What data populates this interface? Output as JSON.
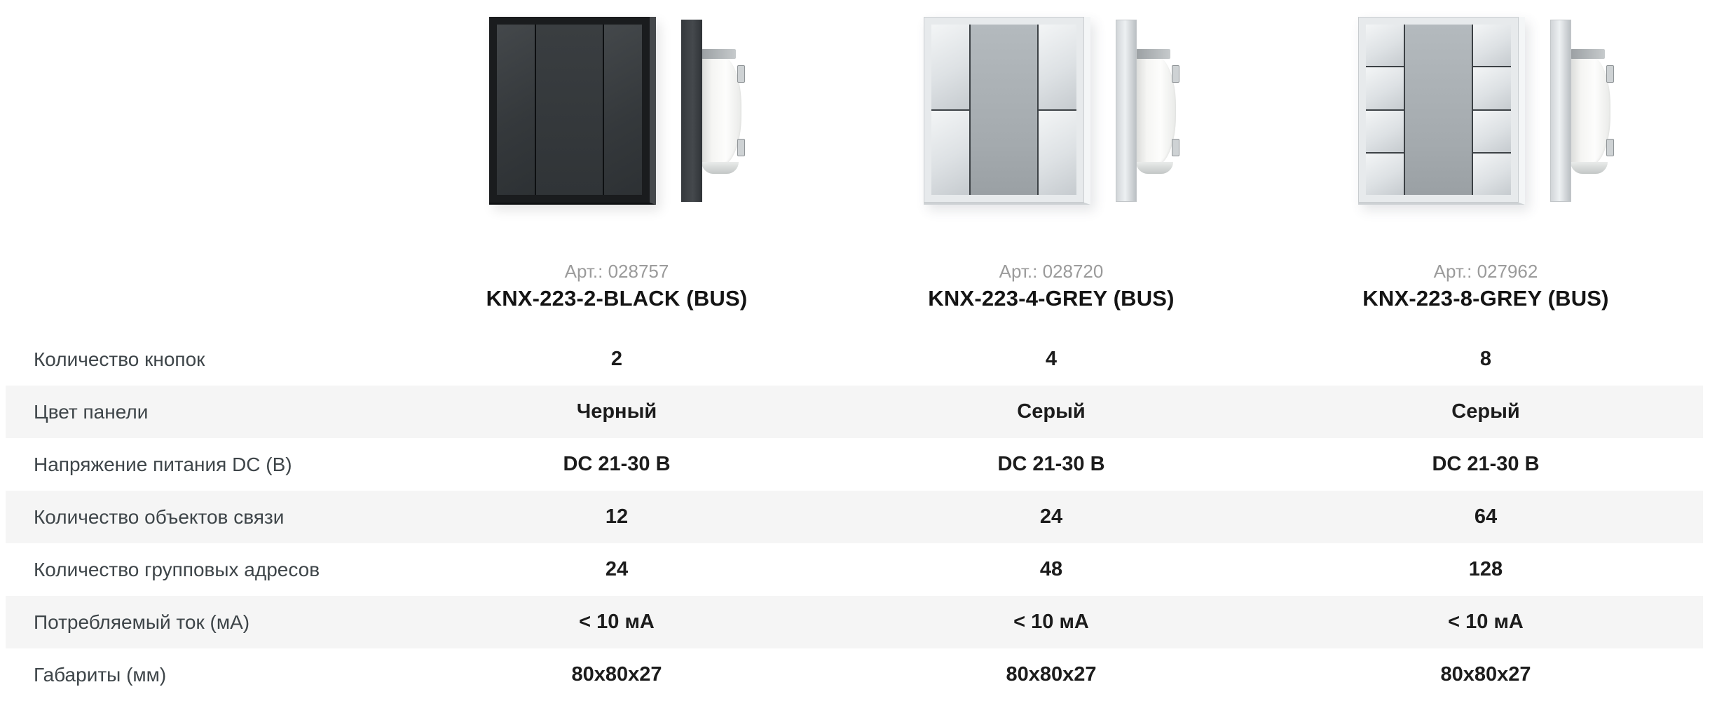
{
  "products": [
    {
      "art": "Арт.: 028757",
      "name": "KNX-223-2-BLACK (BUS)",
      "panel_color": "black",
      "buttons": 2
    },
    {
      "art": "Арт.: 028720",
      "name": "KNX-223-4-GREY (BUS)",
      "panel_color": "grey",
      "buttons": 4
    },
    {
      "art": "Арт.: 027962",
      "name": "KNX-223-8-GREY (BUS)",
      "panel_color": "grey",
      "buttons": 8
    }
  ],
  "table": {
    "rows": [
      {
        "label": "Количество кнопок",
        "values": [
          "2",
          "4",
          "8"
        ]
      },
      {
        "label": "Цвет панели",
        "values": [
          "Черный",
          "Серый",
          "Серый"
        ]
      },
      {
        "label": "Напряжение питания DC (В)",
        "values": [
          "DC 21-30 В",
          "DC 21-30 В",
          "DC 21-30 В"
        ]
      },
      {
        "label": "Количество объектов связи",
        "values": [
          "12",
          "24",
          "64"
        ]
      },
      {
        "label": "Количество групповых адресов",
        "values": [
          "24",
          "48",
          "128"
        ]
      },
      {
        "label": "Потребляемый ток (мА)",
        "values": [
          "< 10 мА",
          "< 10 мА",
          "< 10 мА"
        ]
      },
      {
        "label": "Габариты (мм)",
        "values": [
          "80x80x27",
          "80x80x27",
          "80x80x27"
        ]
      }
    ]
  },
  "colors": {
    "stripe": "#f5f5f5",
    "label_text": "#3e4549",
    "value_text": "#1c1c1c",
    "art_text": "#9b9b9b",
    "black_panel": "#1a1c1e",
    "grey_panel": "#e7eaec"
  }
}
